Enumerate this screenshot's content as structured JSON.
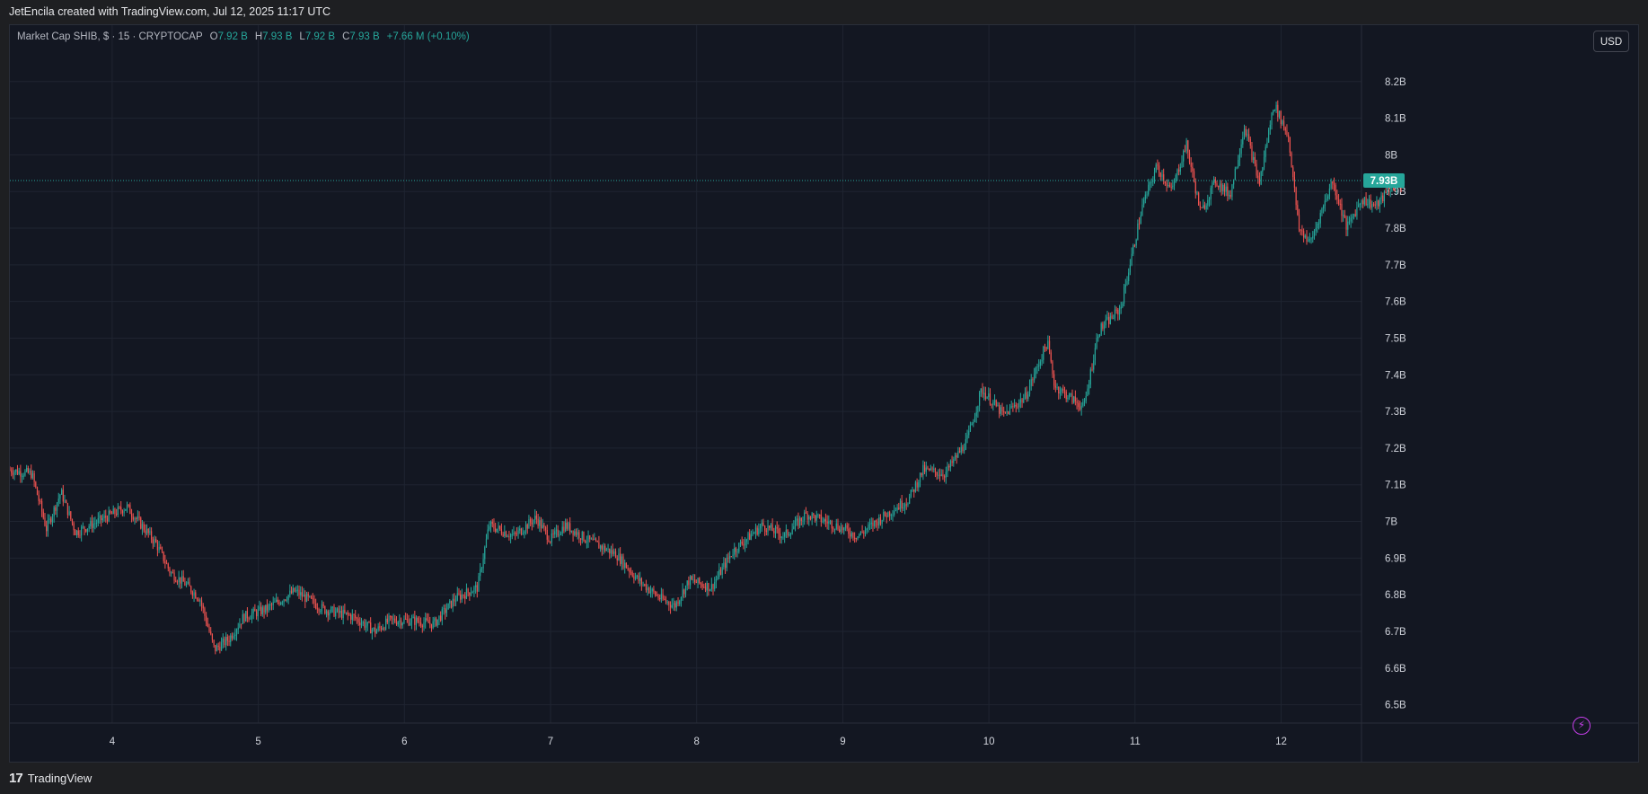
{
  "header": {
    "caption": "JetEncila created with TradingView.com, Jul 12, 2025 11:17 UTC"
  },
  "legend": {
    "symbol": "Market Cap SHIB, $ · 15 · CRYPTOCAP",
    "open_label": "O",
    "open_value": "7.92 B",
    "high_label": "H",
    "high_value": "7.93 B",
    "low_label": "L",
    "low_value": "7.92 B",
    "close_label": "C",
    "close_value": "7.93 B",
    "change": "+7.66 M (+0.10%)"
  },
  "currency_button": "USD",
  "footer": {
    "brand": "TradingView"
  },
  "colors": {
    "up": "#26a69a",
    "down": "#ef5350",
    "background": "#131722",
    "grid": "#1f2431",
    "axis_text": "#d1d4dc",
    "price_line": "#26a69a"
  },
  "chart_data": {
    "type": "candlestick",
    "title": "",
    "xlabel": "",
    "ylabel": "",
    "ylim": [
      6.45,
      8.3
    ],
    "y_ticks": [
      6.5,
      6.6,
      6.7,
      6.8,
      6.9,
      7.0,
      7.1,
      7.2,
      7.3,
      7.4,
      7.5,
      7.6,
      7.7,
      7.8,
      7.9,
      8.0,
      8.1,
      8.2
    ],
    "y_tick_labels": [
      "6.5B",
      "6.6B",
      "6.7B",
      "6.8B",
      "6.9B",
      "7B",
      "7.1B",
      "7.2B",
      "7.3B",
      "7.4B",
      "7.5B",
      "7.6B",
      "7.7B",
      "7.8B",
      "7.9B",
      "8B",
      "8.1B",
      "8.2B"
    ],
    "x_range_days": [
      3.3,
      12.55
    ],
    "x_ticks": [
      4,
      5,
      6,
      7,
      8,
      9,
      10,
      11,
      12
    ],
    "x_tick_labels": [
      "4",
      "5",
      "6",
      "7",
      "8",
      "9",
      "10",
      "11",
      "12"
    ],
    "last_price": 7.93,
    "last_price_label": "7.93B",
    "grid": true,
    "price_path": [
      [
        3.3,
        7.14
      ],
      [
        3.45,
        7.13
      ],
      [
        3.55,
        6.98
      ],
      [
        3.65,
        7.08
      ],
      [
        3.75,
        6.97
      ],
      [
        3.85,
        6.99
      ],
      [
        4.0,
        7.02
      ],
      [
        4.1,
        7.04
      ],
      [
        4.2,
        6.99
      ],
      [
        4.3,
        6.94
      ],
      [
        4.4,
        6.86
      ],
      [
        4.5,
        6.83
      ],
      [
        4.6,
        6.79
      ],
      [
        4.7,
        6.65
      ],
      [
        4.8,
        6.68
      ],
      [
        4.9,
        6.74
      ],
      [
        5.05,
        6.76
      ],
      [
        5.25,
        6.81
      ],
      [
        5.45,
        6.76
      ],
      [
        5.65,
        6.74
      ],
      [
        5.8,
        6.7
      ],
      [
        5.9,
        6.73
      ],
      [
        6.05,
        6.73
      ],
      [
        6.2,
        6.72
      ],
      [
        6.35,
        6.79
      ],
      [
        6.5,
        6.82
      ],
      [
        6.58,
        6.99
      ],
      [
        6.75,
        6.96
      ],
      [
        6.9,
        7.01
      ],
      [
        7.0,
        6.95
      ],
      [
        7.1,
        6.99
      ],
      [
        7.25,
        6.95
      ],
      [
        7.45,
        6.91
      ],
      [
        7.6,
        6.84
      ],
      [
        7.75,
        6.79
      ],
      [
        7.85,
        6.77
      ],
      [
        7.95,
        6.84
      ],
      [
        8.1,
        6.82
      ],
      [
        8.25,
        6.92
      ],
      [
        8.45,
        6.99
      ],
      [
        8.6,
        6.96
      ],
      [
        8.75,
        7.02
      ],
      [
        8.95,
        6.99
      ],
      [
        9.1,
        6.96
      ],
      [
        9.3,
        7.02
      ],
      [
        9.45,
        7.06
      ],
      [
        9.55,
        7.14
      ],
      [
        9.7,
        7.13
      ],
      [
        9.85,
        7.22
      ],
      [
        9.95,
        7.36
      ],
      [
        10.1,
        7.29
      ],
      [
        10.25,
        7.34
      ],
      [
        10.4,
        7.49
      ],
      [
        10.45,
        7.37
      ],
      [
        10.55,
        7.34
      ],
      [
        10.65,
        7.31
      ],
      [
        10.75,
        7.52
      ],
      [
        10.9,
        7.58
      ],
      [
        11.05,
        7.86
      ],
      [
        11.15,
        7.97
      ],
      [
        11.25,
        7.9
      ],
      [
        11.35,
        8.03
      ],
      [
        11.45,
        7.84
      ],
      [
        11.55,
        7.93
      ],
      [
        11.65,
        7.89
      ],
      [
        11.75,
        8.08
      ],
      [
        11.85,
        7.92
      ],
      [
        11.95,
        8.14
      ],
      [
        12.05,
        8.05
      ],
      [
        12.12,
        7.8
      ],
      [
        12.2,
        7.76
      ],
      [
        12.35,
        7.93
      ],
      [
        12.45,
        7.8
      ],
      [
        12.55,
        7.88
      ],
      [
        12.65,
        7.86
      ],
      [
        12.75,
        7.91
      ],
      [
        12.85,
        7.93
      ]
    ]
  }
}
